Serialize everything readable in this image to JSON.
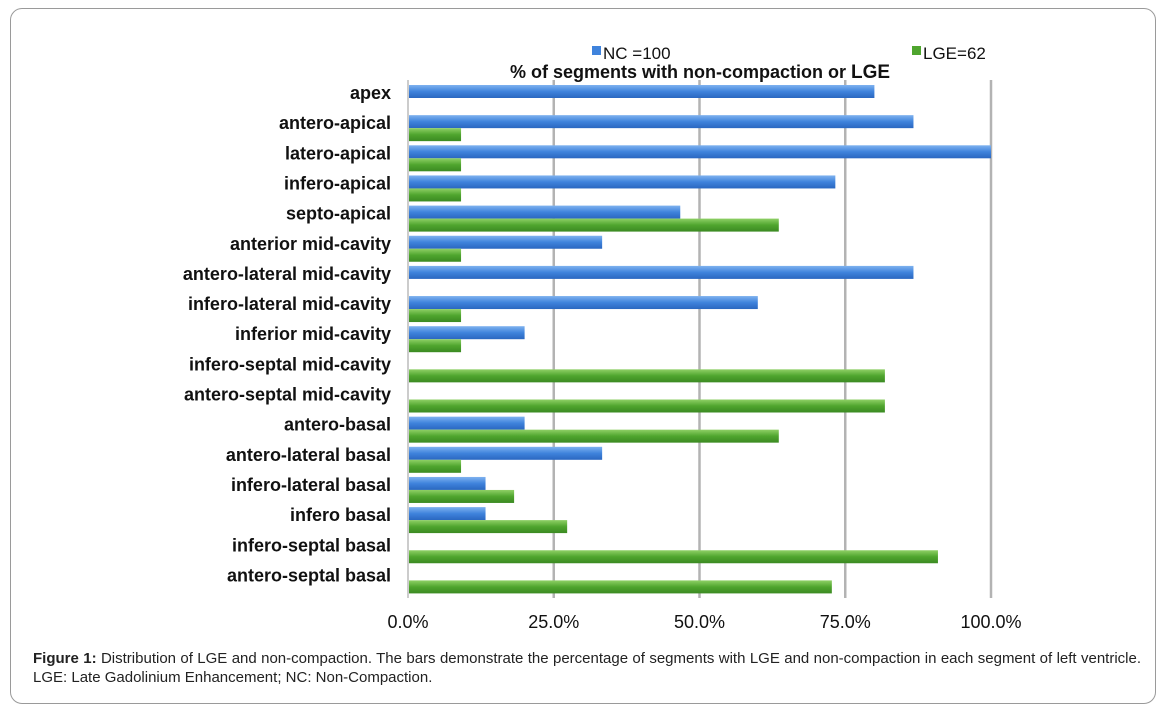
{
  "chart_data": {
    "type": "bar",
    "orientation": "horizontal",
    "title": "% of segments with non-compaction or LGE",
    "title_prefix": "% of segments with non-compaction or ",
    "title_emphasis": "LGE",
    "categories": [
      "apex",
      "antero-apical",
      "latero-apical",
      "infero-apical",
      "septo-apical",
      "anterior mid-cavity",
      "antero-lateral mid-cavity",
      "infero-lateral mid-cavity",
      "inferior mid-cavity",
      "infero-septal mid-cavity",
      "antero-septal mid-cavity",
      "antero-basal",
      "antero-lateral basal",
      "infero-lateral basal",
      "infero basal",
      "infero-septal basal",
      "antero-septal basal"
    ],
    "series": [
      {
        "name": "NC =100",
        "color": "#4f8fe0",
        "values": [
          80,
          86.7,
          100,
          73.3,
          46.7,
          33.3,
          86.7,
          60,
          20,
          0,
          0,
          20,
          33.3,
          13.3,
          13.3,
          0,
          0
        ]
      },
      {
        "name": "LGE=62",
        "color": "#5aab3a",
        "values": [
          0,
          9.1,
          9.1,
          9.1,
          63.6,
          9.1,
          0,
          9.1,
          9.1,
          81.8,
          81.8,
          63.6,
          9.1,
          18.2,
          27.3,
          90.9,
          72.7
        ]
      }
    ],
    "xlim": [
      0,
      100
    ],
    "xticks": [
      0,
      25,
      50,
      75,
      100
    ],
    "xtick_labels": [
      "0.0%",
      "25.0%",
      "50.0%",
      "75.0%",
      "100.0%"
    ],
    "grid": true,
    "legend_position": "top"
  },
  "caption": {
    "label": "Figure 1:",
    "text": " Distribution of LGE and non-compaction. The bars demonstrate the percentage of segments with LGE and non-compaction in each segment of left ventricle. LGE: Late Gadolinium Enhancement; NC: Non-Compaction."
  }
}
